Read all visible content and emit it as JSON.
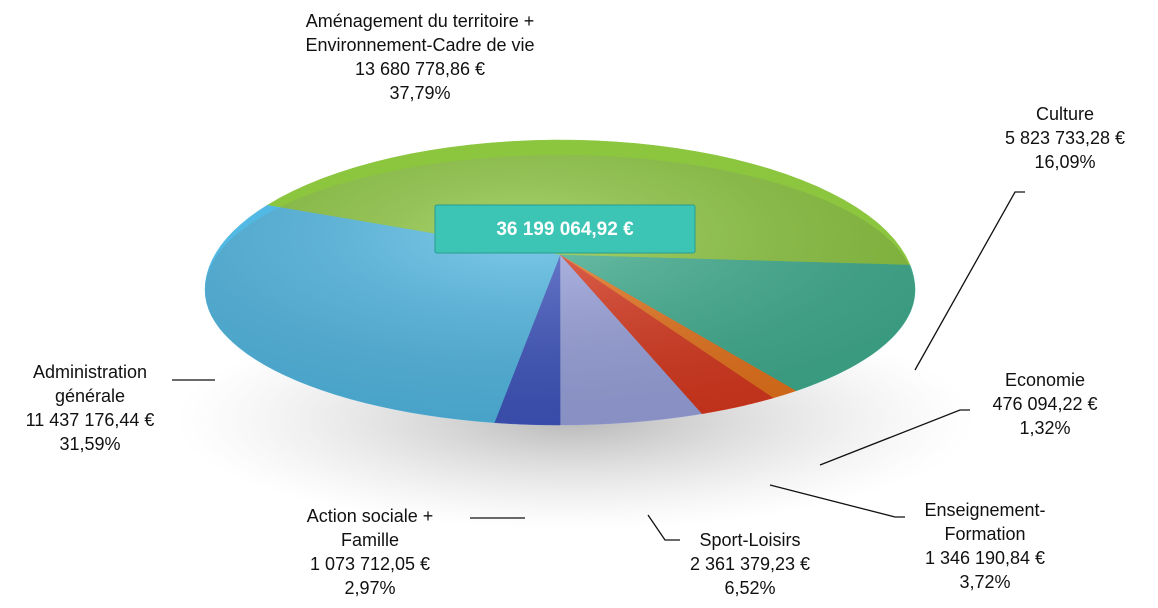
{
  "chart_data": {
    "type": "pie",
    "categories": [
      [
        "Aménagement du territoire +",
        "Environnement-Cadre de vie"
      ],
      [
        "Culture"
      ],
      [
        "Economie"
      ],
      [
        "Enseignement-",
        "Formation"
      ],
      [
        "Sport-Loisirs"
      ],
      [
        "Action sociale +",
        "Famille"
      ],
      [
        "Administration",
        "générale"
      ]
    ],
    "values": [
      13680778.86,
      5823733.28,
      476094.22,
      1346190.84,
      2361379.23,
      1073712.05,
      11437176.44
    ],
    "value_labels": [
      "13 680 778,86 €",
      "5 823 733,28 €",
      "476 094,22 €",
      "1 346 190,84 €",
      "2 361 379,23 €",
      "1 073 712,05 €",
      "11 437 176,44 €"
    ],
    "percentages": [
      37.79,
      16.09,
      1.32,
      3.72,
      6.52,
      2.97,
      31.59
    ],
    "percentage_labels": [
      "37,79%",
      "16,09%",
      "1,32%",
      "3,72%",
      "6,52%",
      "2,97%",
      "31,59%"
    ],
    "colors": [
      "#8cc63f",
      "#3fae8f",
      "#e8741c",
      "#d9381e",
      "#9aa3de",
      "#3f55bf",
      "#52b9e4"
    ],
    "total": 36199064.92,
    "total_label": "36 199 064,92 €"
  }
}
